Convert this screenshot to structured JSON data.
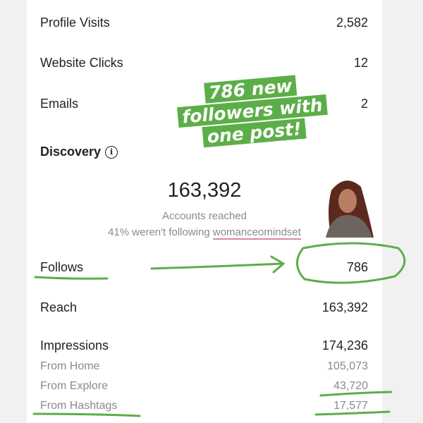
{
  "rows": {
    "profile_visits": {
      "label": "Profile Visits",
      "value": "2,582"
    },
    "website_clicks": {
      "label": "Website Clicks",
      "value": "12"
    },
    "emails": {
      "label": "Emails",
      "value": "2"
    }
  },
  "discovery": {
    "title": "Discovery",
    "info_icon": "info-icon",
    "accounts_reached_value": "163,392",
    "accounts_reached_label": "Accounts reached",
    "not_following_prefix": "41% weren't following ",
    "username": "womanceomindset"
  },
  "metrics": {
    "follows": {
      "label": "Follows",
      "value": "786"
    },
    "reach": {
      "label": "Reach",
      "value": "163,392"
    },
    "impressions": {
      "label": "Impressions",
      "value": "174,236"
    },
    "from_home": {
      "label": "From Home",
      "value": "105,073"
    },
    "from_explore": {
      "label": "From Explore",
      "value": "43,720"
    },
    "from_hashtags": {
      "label": "From Hashtags",
      "value": "17,577"
    }
  },
  "sticker": {
    "lines": [
      "786 new",
      "followers with",
      "one post!"
    ]
  },
  "colors": {
    "annotation_green": "#5cae48",
    "underline_pink": "#d98aa0"
  }
}
